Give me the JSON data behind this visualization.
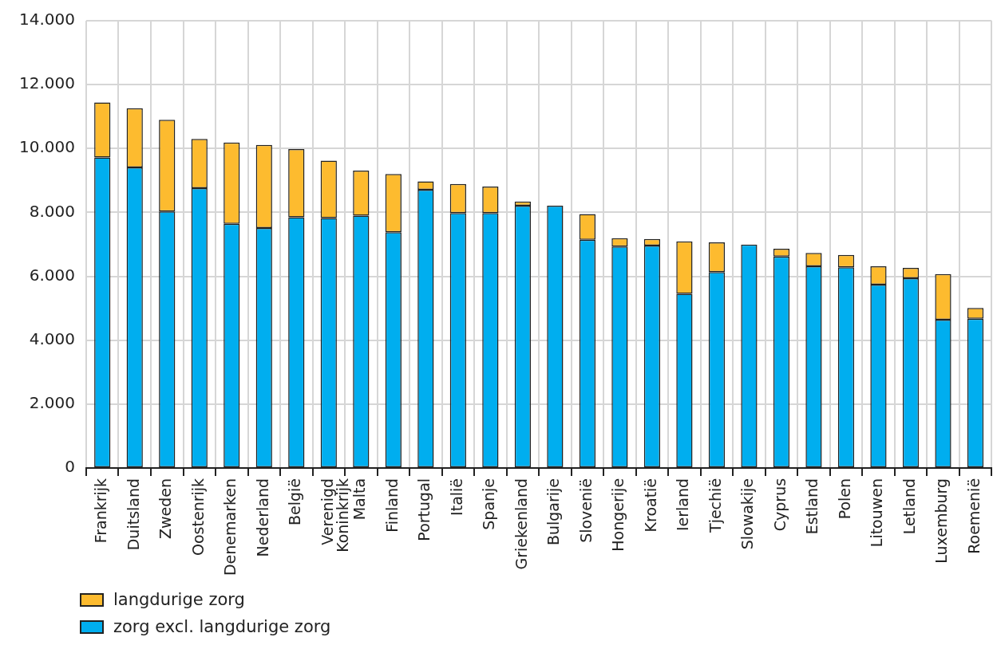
{
  "chart_data": {
    "type": "bar",
    "stacked": true,
    "grid": true,
    "legend": "bottom left",
    "categories": [
      "Frankrijk",
      "Duitsland",
      "Zweden",
      "Oostenrijk",
      "Denemarken",
      "Nederland",
      "België",
      "Verenigd Koninkrijk",
      "Malta",
      "Finland",
      "Portugal",
      "Italië",
      "Spanje",
      "Griekenland",
      "Bulgarije",
      "Slovenië",
      "Hongerije",
      "Kroatië",
      "Ierland",
      "Tjechië",
      "Slowakije",
      "Cyprus",
      "Estland",
      "Polen",
      "Litouwen",
      "Letland",
      "Luxemburg",
      "Roemenië"
    ],
    "series": [
      {
        "name": "zorg excl. langdurige zorg",
        "color": "#00aeef",
        "values": [
          9720,
          9410,
          8030,
          8760,
          7640,
          7510,
          7850,
          7820,
          7900,
          7380,
          8710,
          7980,
          7980,
          8210,
          8210,
          7140,
          6930,
          6960,
          5450,
          6130,
          6990,
          6620,
          6310,
          6280,
          5740,
          5940,
          4640,
          4670
        ]
      },
      {
        "name": "langdurige zorg",
        "color": "#fdbb2f",
        "values": [
          1720,
          1850,
          2870,
          1540,
          2550,
          2600,
          2130,
          1800,
          1410,
          1820,
          260,
          910,
          830,
          130,
          null,
          810,
          260,
          210,
          1640,
          930,
          null,
          240,
          420,
          390,
          570,
          320,
          1430,
          340
        ]
      }
    ],
    "ylim": [
      0,
      14000
    ],
    "yticks": [
      {
        "value": 0,
        "label": "0"
      },
      {
        "value": 2000,
        "label": "2.000"
      },
      {
        "value": 4000,
        "label": "4.000"
      },
      {
        "value": 6000,
        "label": "6.000"
      },
      {
        "value": 8000,
        "label": "8.000"
      },
      {
        "value": 10000,
        "label": "10.000"
      },
      {
        "value": 12000,
        "label": "12.000"
      },
      {
        "value": 14000,
        "label": "14.000"
      }
    ]
  }
}
